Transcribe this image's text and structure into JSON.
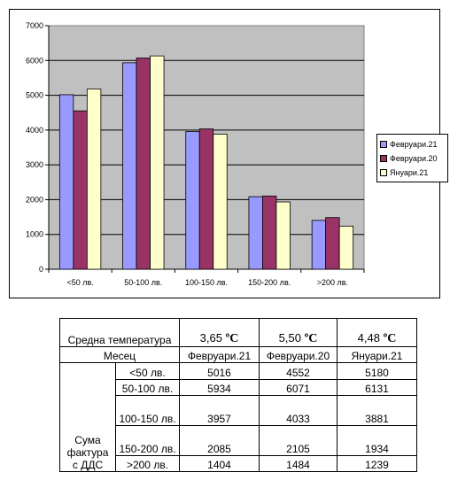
{
  "chart_data": {
    "type": "bar",
    "categories": [
      "<50 лв.",
      "50-100 лв.",
      "100-150 лв.",
      "150-200 лв.",
      ">200 лв."
    ],
    "series": [
      {
        "name": "Февруари.21",
        "values": [
          5016,
          5934,
          3957,
          2085,
          1404
        ],
        "color": "#9999FF"
      },
      {
        "name": "Февруари.20",
        "values": [
          4552,
          6071,
          4033,
          2105,
          1484
        ],
        "color": "#993366"
      },
      {
        "name": "Януари.21",
        "values": [
          5180,
          6131,
          3881,
          1934,
          1239
        ],
        "color": "#FFFFCC"
      }
    ],
    "ylim": [
      0,
      7000
    ],
    "yticks": [
      0,
      1000,
      2000,
      3000,
      4000,
      5000,
      6000,
      7000
    ],
    "plot_background": "#C0C0C0",
    "grid": true,
    "legend_position": "right"
  },
  "table": {
    "temp_label": "Средна температура",
    "temps": [
      {
        "value": "3,65",
        "unit": "ºC"
      },
      {
        "value": "5,50",
        "unit": "ºC"
      },
      {
        "value": "4,48",
        "unit": "ºC"
      }
    ],
    "month_label": "Месец",
    "months": [
      "Февруари.21",
      "Февруари.20",
      "Януари.21"
    ],
    "group_label": "Сума фактура с ДДС",
    "rows": [
      {
        "label": "<50 лв.",
        "values": [
          "5016",
          "4552",
          "5180"
        ]
      },
      {
        "label": "50-100 лв.",
        "values": [
          "5934",
          "6071",
          "6131"
        ]
      },
      {
        "label": "100-150 лв.",
        "values": [
          "3957",
          "4033",
          "3881"
        ]
      },
      {
        "label": "150-200 лв.",
        "values": [
          "2085",
          "2105",
          "1934"
        ]
      },
      {
        "label": ">200 лв.",
        "values": [
          "1404",
          "1484",
          "1239"
        ]
      }
    ]
  }
}
